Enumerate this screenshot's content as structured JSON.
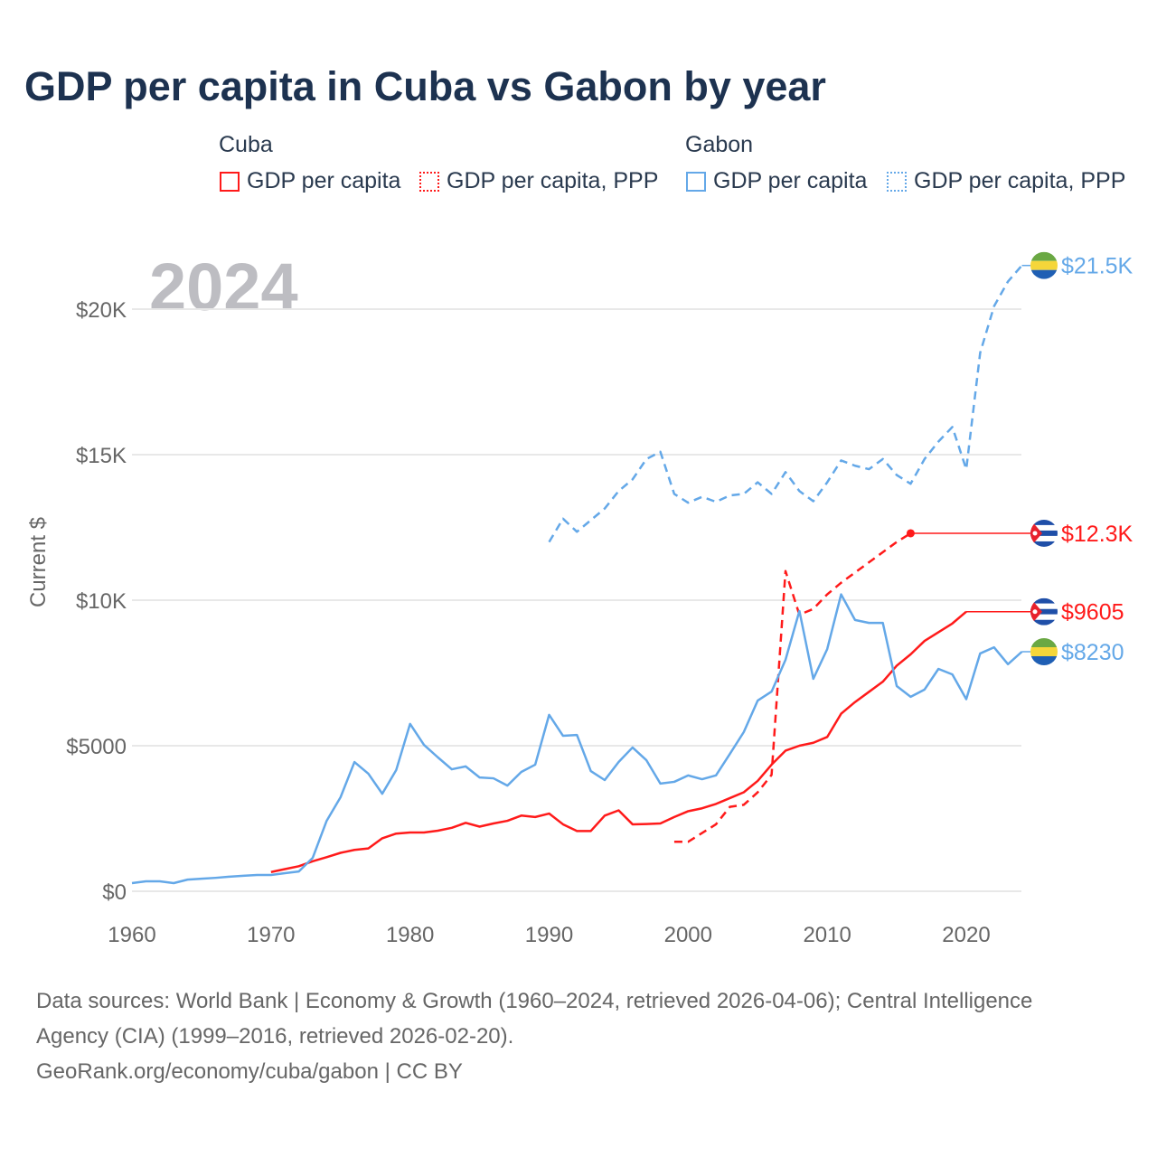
{
  "chart_data": {
    "type": "line",
    "title": "GDP per capita in Cuba vs Gabon by year",
    "year_label": "2024",
    "ylabel": "Current $",
    "xlabel": "",
    "xlim": [
      1960,
      2024
    ],
    "ylim": [
      0,
      22000
    ],
    "x_ticks": [
      1960,
      1970,
      1980,
      1990,
      2000,
      2010,
      2020
    ],
    "x_tick_labels": [
      "1960",
      "1970",
      "1980",
      "1990",
      "2000",
      "2010",
      "2020"
    ],
    "y_ticks": [
      0,
      5000,
      10000,
      15000,
      20000
    ],
    "y_tick_labels": [
      "$0",
      "$5000",
      "$10K",
      "$15K",
      "$20K"
    ],
    "grid": true,
    "legend_placement": "top",
    "legend_groups": [
      "Cuba",
      "Gabon"
    ],
    "series": [
      {
        "name": "GDP per capita",
        "country": "Cuba",
        "color": "#ff1a1a",
        "dash": false,
        "start": 1970,
        "values": [
          660,
          760,
          860,
          1030,
          1170,
          1320,
          1420,
          1470,
          1820,
          1980,
          2020,
          2020,
          2080,
          2180,
          2350,
          2220,
          2330,
          2420,
          2600,
          2550,
          2670,
          2300,
          2070,
          2070,
          2600,
          2780,
          2300,
          2310,
          2330,
          2550,
          2750,
          2850,
          3000,
          3200,
          3400,
          3790,
          4350,
          4830,
          5000,
          5100,
          5300,
          6100,
          6500,
          6850,
          7200,
          7750,
          8140,
          8600,
          8900,
          9200,
          9605
        ],
        "end_label": "$9605",
        "flag": "cuba"
      },
      {
        "name": "GDP per capita, PPP",
        "country": "Cuba",
        "color": "#ff1a1a",
        "dash": true,
        "start": 1999,
        "values": [
          1700,
          1700,
          2000,
          2300,
          2900,
          2970,
          3400,
          4000,
          11000,
          9500,
          9700,
          10200,
          10600,
          10950,
          11300,
          11650,
          12000,
          12300
        ],
        "end_label": "$12.3K",
        "flag": "cuba"
      },
      {
        "name": "GDP per capita",
        "country": "Gabon",
        "color": "#64a8e8",
        "dash": false,
        "start": 1960,
        "values": [
          280,
          340,
          340,
          280,
          400,
          430,
          460,
          500,
          530,
          560,
          560,
          620,
          680,
          1150,
          2420,
          3230,
          4440,
          4040,
          3350,
          4160,
          5750,
          5030,
          4600,
          4190,
          4290,
          3910,
          3880,
          3630,
          4100,
          4350,
          6060,
          5340,
          5370,
          4130,
          3820,
          4440,
          4940,
          4500,
          3700,
          3760,
          3980,
          3850,
          3980,
          4720,
          5470,
          6550,
          6860,
          7950,
          9630,
          7300,
          8320,
          10200,
          9320,
          9220,
          9220,
          7050,
          6680,
          6930,
          7640,
          7450,
          6600,
          8170,
          8380,
          7800,
          8230
        ],
        "end_label": "$8230",
        "flag": "gabon"
      },
      {
        "name": "GDP per capita, PPP",
        "country": "Gabon",
        "color": "#64a8e8",
        "dash": true,
        "start": 1990,
        "values": [
          12000,
          12800,
          12350,
          12750,
          13150,
          13750,
          14150,
          14850,
          15100,
          13650,
          13350,
          13550,
          13380,
          13600,
          13650,
          14050,
          13650,
          14400,
          13750,
          13400,
          14050,
          14800,
          14620,
          14500,
          14850,
          14300,
          14000,
          14850,
          15450,
          15950,
          14500,
          18500,
          20100,
          20950,
          21500
        ],
        "end_label": "$21.5K",
        "flag": "gabon"
      }
    ]
  },
  "footer": {
    "line1": "Data sources: World Bank | Economy & Growth (1960–2024, retrieved 2026-04-06); Central Intelligence",
    "line2": "Agency (CIA) (1999–2016, retrieved 2026-02-20).",
    "line3": "GeoRank.org/economy/cuba/gabon | CC BY"
  }
}
